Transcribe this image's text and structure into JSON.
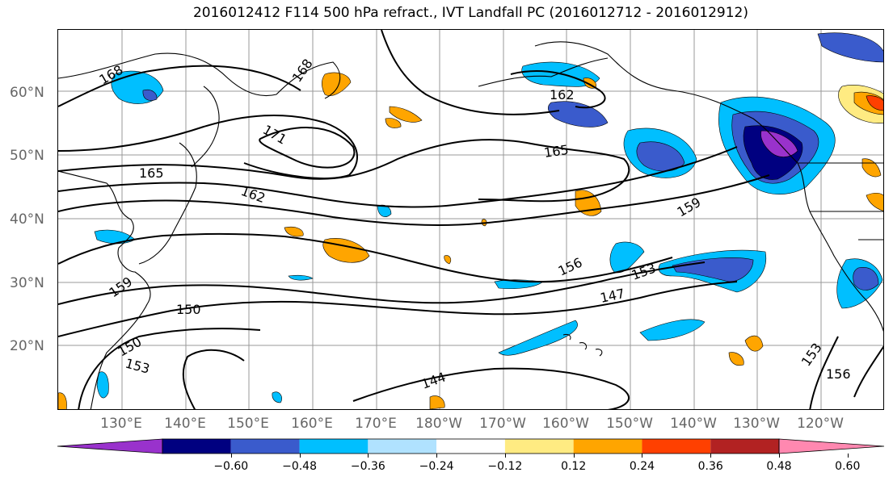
{
  "title": "2016012412 F114 500 hPa refract., IVT Landfall PC (2016012712 - 2016012912)",
  "lat_labels": [
    "60°N",
    "50°N",
    "40°N",
    "30°N",
    "20°N"
  ],
  "lon_labels": [
    "130°E",
    "140°E",
    "150°E",
    "160°E",
    "170°E",
    "180°W",
    "170°W",
    "160°W",
    "150°W",
    "140°W",
    "130°W",
    "120°W"
  ],
  "contour_labels": [
    "168",
    "168",
    "171",
    "165",
    "165",
    "162",
    "162",
    "159",
    "159",
    "156",
    "153",
    "150",
    "150",
    "153",
    "147",
    "144",
    "153",
    "156"
  ],
  "colorbar": {
    "ticks": [
      "−0.60",
      "−0.48",
      "−0.36",
      "−0.24",
      "−0.12",
      "0.12",
      "0.24",
      "0.36",
      "0.48",
      "0.60"
    ],
    "colors": [
      "#9932cc",
      "#000080",
      "#3a5bcc",
      "#00bfff",
      "#b0e2ff",
      "#ffffff",
      "#ffeb82",
      "#ffa500",
      "#ff4000",
      "#b22222",
      "#ff88b0"
    ]
  }
}
